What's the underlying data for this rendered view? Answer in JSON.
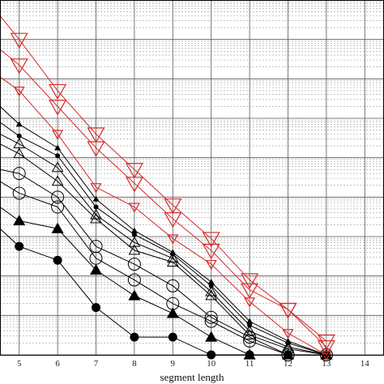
{
  "chart_data": {
    "type": "line",
    "title": "",
    "xlabel": "segment length",
    "ylabel": "",
    "xlim": [
      4.5,
      14.5
    ],
    "ylim": [
      0,
      9
    ],
    "y_scale": "log-like (unlabeled)",
    "x_ticks": [
      5,
      6,
      7,
      8,
      9,
      10,
      11,
      12,
      13,
      14
    ],
    "grid": true,
    "legend": "none",
    "colors": {
      "black": "#000000",
      "red": "#d42a2a",
      "grid_major": "#555555",
      "grid_minor": "#9a9a9a"
    },
    "series": [
      {
        "color": "black",
        "marker": "filled-circle",
        "x": [
          4.5,
          5,
          6,
          7,
          8,
          9,
          10,
          11,
          12,
          13
        ],
        "y": [
          3.2,
          2.75,
          2.4,
          1.2,
          0.45,
          0.45,
          0.0,
          0.0,
          0.0,
          0.0
        ]
      },
      {
        "color": "black",
        "marker": "filled-triangle",
        "x": [
          4.5,
          5,
          6,
          7,
          8,
          9,
          10,
          11,
          12,
          13
        ],
        "y": [
          3.75,
          3.4,
          3.2,
          2.15,
          1.5,
          1.05,
          0.45,
          0.0,
          0.0,
          0.0
        ]
      },
      {
        "color": "black",
        "marker": "open-circle",
        "x": [
          4.5,
          5,
          6,
          7,
          8,
          9,
          10,
          11,
          12,
          13
        ],
        "y": [
          4.4,
          4.1,
          3.75,
          2.45,
          1.9,
          1.3,
          0.85,
          0.35,
          0.0,
          0.0
        ]
      },
      {
        "color": "black",
        "marker": "open-circle",
        "x": [
          4.5,
          5,
          6,
          7,
          8,
          9,
          10,
          11,
          12,
          13
        ],
        "y": [
          4.7,
          4.6,
          4.0,
          2.75,
          2.3,
          1.75,
          0.95,
          0.45,
          0.0,
          0.0
        ]
      },
      {
        "color": "black",
        "marker": "open-triangle",
        "x": [
          4.5,
          5,
          6,
          7,
          8,
          9,
          10,
          11,
          12,
          13
        ],
        "y": [
          5.35,
          5.1,
          4.4,
          3.45,
          2.65,
          2.35,
          1.5,
          0.5,
          0.15,
          0.0
        ]
      },
      {
        "color": "black",
        "marker": "open-triangle",
        "x": [
          4.5,
          5,
          6,
          7,
          8,
          9,
          10,
          11,
          12,
          13
        ],
        "y": [
          5.6,
          5.35,
          4.75,
          3.55,
          2.85,
          2.45,
          1.6,
          0.6,
          0.2,
          0.0
        ]
      },
      {
        "color": "black",
        "marker": "small-filled-circle",
        "x": [
          4.5,
          5,
          6,
          7,
          8,
          9,
          10,
          11,
          12,
          13
        ],
        "y": [
          5.9,
          5.55,
          5.05,
          3.75,
          3.05,
          2.55,
          1.75,
          0.75,
          0.3,
          0.0
        ]
      },
      {
        "color": "black",
        "marker": "small-filled-triangle",
        "x": [
          4.5,
          5,
          6,
          7,
          8,
          9,
          10,
          11,
          12,
          13
        ],
        "y": [
          6.3,
          5.85,
          5.25,
          3.95,
          3.15,
          2.6,
          1.85,
          0.85,
          0.35,
          0.0
        ]
      },
      {
        "color": "red",
        "marker": "small-open-triangle-down",
        "x": [
          4.5,
          5,
          6,
          7,
          8,
          9,
          10,
          11,
          12,
          13
        ],
        "y": [
          7.05,
          6.7,
          5.6,
          4.25,
          3.75,
          2.95,
          2.3,
          1.35,
          0.55,
          0.0
        ]
      },
      {
        "color": "red",
        "marker": "open-triangle-down",
        "x": [
          4.5,
          5,
          6,
          7,
          8,
          9,
          10,
          11,
          12,
          13
        ],
        "y": [
          7.75,
          7.35,
          6.3,
          5.25,
          4.35,
          3.45,
          2.65,
          1.65,
          1.15,
          0.2
        ]
      },
      {
        "color": "red",
        "marker": "open-triangle-down",
        "x": [
          4.5,
          5,
          6,
          7,
          8,
          9,
          10,
          11,
          12,
          13
        ],
        "y": [
          8.6,
          8.0,
          6.7,
          5.6,
          4.7,
          3.8,
          2.95,
          1.9,
          1.15,
          0.35
        ]
      }
    ]
  }
}
